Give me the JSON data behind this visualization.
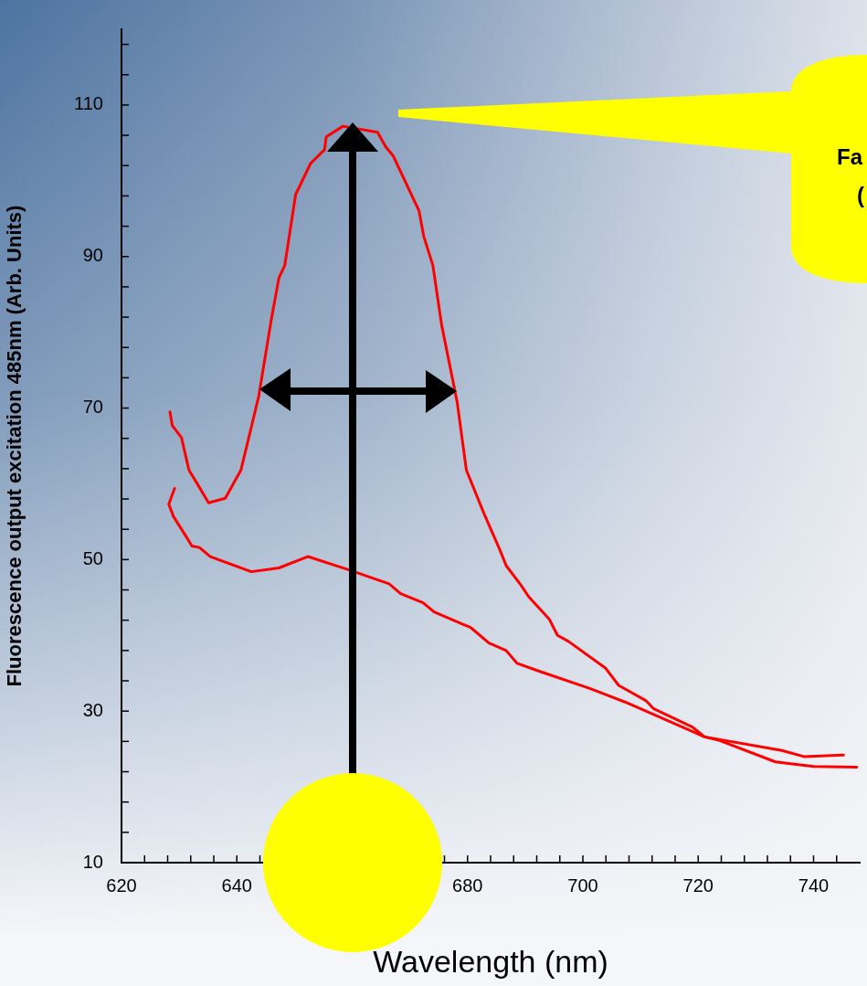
{
  "chart_data": {
    "type": "line",
    "xlabel": "Wavelength (nm)",
    "ylabel": "Fluorescence output excitation 485nm (Arb. Units)",
    "xlim": [
      620,
      748
    ],
    "ylim": [
      10,
      120
    ],
    "xticks": [
      620,
      {
        "value": 624,
        "label": null
      },
      {
        "value": 628,
        "label": null
      },
      {
        "value": 632,
        "label": null
      },
      {
        "value": 636,
        "label": null
      },
      640,
      {
        "value": 644,
        "label": null
      },
      {
        "value": 648,
        "label": null
      },
      {
        "value": 652,
        "label": null
      },
      {
        "value": 656,
        "label": null
      },
      {
        "value": 660,
        "label": null
      },
      {
        "value": 664,
        "label": null
      },
      {
        "value": 668,
        "label": null
      },
      {
        "value": 672,
        "label": null
      },
      {
        "value": 676,
        "label": null
      },
      680,
      {
        "value": 684,
        "label": null
      },
      {
        "value": 688,
        "label": null
      },
      {
        "value": 692,
        "label": null
      },
      {
        "value": 696,
        "label": null
      },
      700,
      {
        "value": 704,
        "label": null
      },
      {
        "value": 708,
        "label": null
      },
      {
        "value": 712,
        "label": null
      },
      {
        "value": 716,
        "label": null
      },
      720,
      {
        "value": 724,
        "label": null
      },
      {
        "value": 728,
        "label": null
      },
      {
        "value": 732,
        "label": null
      },
      {
        "value": 736,
        "label": null
      },
      740,
      {
        "value": 744,
        "label": null
      }
    ],
    "yticks": [
      10,
      {
        "value": 14,
        "label": null
      },
      {
        "value": 18,
        "label": null
      },
      {
        "value": 22,
        "label": null
      },
      {
        "value": 26,
        "label": null
      },
      30,
      {
        "value": 34,
        "label": null
      },
      {
        "value": 38,
        "label": null
      },
      {
        "value": 42,
        "label": null
      },
      {
        "value": 46,
        "label": null
      },
      50,
      {
        "value": 54,
        "label": null
      },
      {
        "value": 58,
        "label": null
      },
      {
        "value": 62,
        "label": null
      },
      {
        "value": 66,
        "label": null
      },
      70,
      {
        "value": 74,
        "label": null
      },
      {
        "value": 78,
        "label": null
      },
      {
        "value": 82,
        "label": null
      },
      {
        "value": 86,
        "label": null
      },
      90,
      {
        "value": 94,
        "label": null
      },
      {
        "value": 98,
        "label": null
      },
      {
        "value": 102,
        "label": null
      },
      {
        "value": 106,
        "label": null
      },
      110,
      {
        "value": 114,
        "label": null
      },
      {
        "value": 118,
        "label": null
      }
    ],
    "grid": false,
    "legend": false,
    "marker": "none",
    "line_style": "solid",
    "annotations": [
      "Fa",
      "("
    ],
    "series": [
      {
        "color": "#ff0000",
        "x": [
          628.4,
          628.8,
          630.4,
          631.7,
          633.3,
          635.1,
          638.0,
          640.7,
          642.2,
          643.8,
          646.0,
          647.3,
          648.3,
          650.2,
          652.8,
          655.2,
          655.5,
          658.4,
          664.4,
          665.8,
          667.1,
          671.6,
          672.4,
          674.0,
          675.5,
          678.2,
          679.8,
          682.9,
          685.6,
          686.7,
          689.3,
          690.6,
          694.2,
          695.6,
          697.5,
          703.9,
          706.2,
          710.9,
          712.3,
          719.0,
          721.1,
          723.4,
          733.4,
          740.0,
          747.5
        ],
        "values": [
          69.5,
          67.7,
          66.1,
          61.8,
          59.8,
          57.5,
          58.1,
          61.8,
          66.5,
          71.6,
          81.8,
          87.2,
          88.8,
          98.2,
          102.3,
          104.1,
          105.8,
          107.2,
          106.4,
          104.5,
          103.3,
          96.0,
          92.7,
          88.8,
          81.0,
          70.8,
          61.8,
          56.0,
          51.3,
          49.2,
          46.6,
          45.1,
          42.1,
          40.0,
          39.2,
          35.7,
          33.4,
          31.4,
          30.3,
          27.9,
          26.6,
          26.2,
          23.3,
          22.7,
          22.6
        ]
      },
      {
        "color": "#ff0000",
        "x": [
          629.2,
          628.2,
          629.0,
          631.4,
          632.2,
          633.5,
          635.4,
          642.5,
          647.3,
          652.3,
          659.2,
          666.4,
          668.4,
          672.3,
          674.2,
          680.6,
          683.7,
          686.7,
          688.6,
          692.3,
          701.2,
          707.3,
          721.1,
          734.5,
          738.3,
          745.2
        ],
        "values": [
          59.4,
          57.3,
          55.7,
          52.8,
          51.8,
          51.6,
          50.4,
          48.4,
          48.9,
          50.4,
          48.7,
          46.8,
          45.5,
          44.3,
          43.1,
          41.0,
          39.0,
          38.0,
          36.3,
          35.3,
          33.0,
          31.2,
          26.6,
          24.8,
          24.0,
          24.2
        ]
      }
    ]
  }
}
